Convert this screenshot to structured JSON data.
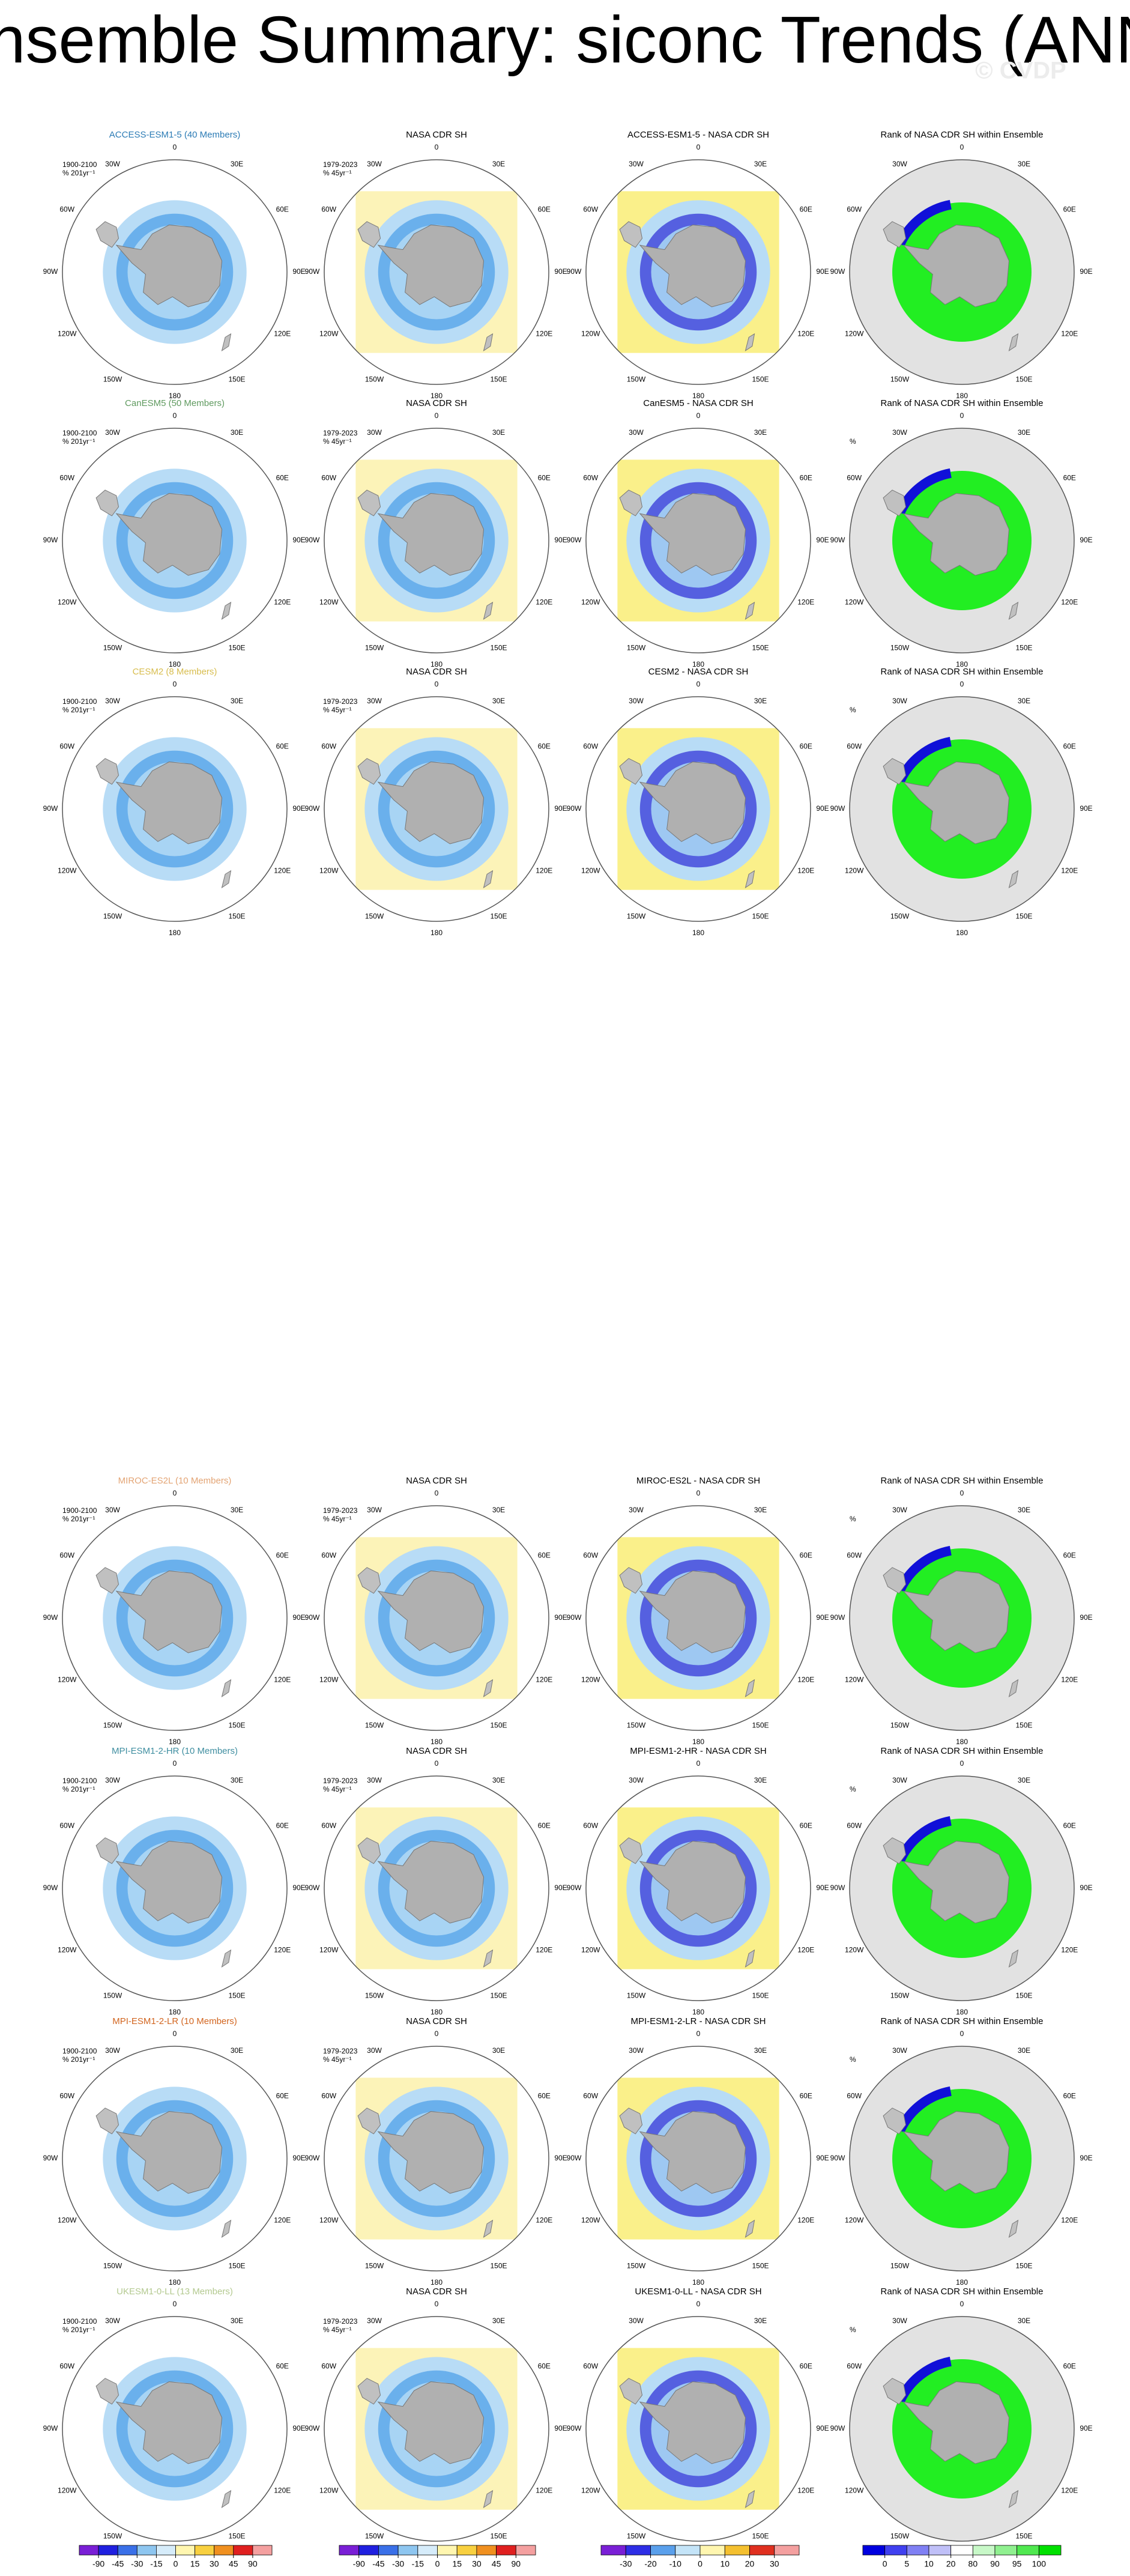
{
  "title": "Ensemble Summary: siconc Trends (ANN)",
  "watermark": "© CVDP",
  "lon_labels": [
    "0",
    "30E",
    "60E",
    "90E",
    "120E",
    "150E",
    "180",
    "150W",
    "120W",
    "90W",
    "60W",
    "30W"
  ],
  "rows": [
    {
      "model_label": "ACCESS-ESM1-5 (40 Members)",
      "label_color": "#2b7bb5",
      "model_period": "1900-2100",
      "model_units": "% 201yr⁻¹",
      "obs_title": "NASA CDR SH",
      "obs_period": "1979-2023",
      "obs_units": "% 45yr⁻¹",
      "diff_title": "ACCESS-ESM1-5 - NASA CDR SH",
      "rank_title": "Rank of NASA CDR SH within Ensemble"
    },
    {
      "model_label": "CanESM5 (50 Members)",
      "label_color": "#5f9a5f",
      "model_period": "1900-2100",
      "model_units": "% 201yr⁻¹",
      "obs_title": "NASA CDR SH",
      "obs_period": "1979-2023",
      "obs_units": "% 45yr⁻¹",
      "diff_title": "CanESM5 - NASA CDR SH",
      "rank_title": "Rank of NASA CDR SH within Ensemble",
      "rank_units": "%"
    },
    {
      "model_label": "CESM2 (8 Members)",
      "label_color": "#d8bd4e",
      "model_period": "1900-2100",
      "model_units": "% 201yr⁻¹",
      "obs_title": "NASA CDR SH",
      "obs_period": "1979-2023",
      "obs_units": "% 45yr⁻¹",
      "diff_title": "CESM2 - NASA CDR SH",
      "rank_title": "Rank of NASA CDR SH within Ensemble",
      "rank_units": "%"
    },
    {
      "model_label": "MIROC-ES2L (10 Members)",
      "label_color": "#e3a474",
      "model_period": "1900-2100",
      "model_units": "% 201yr⁻¹",
      "obs_title": "NASA CDR SH",
      "obs_period": "1979-2023",
      "obs_units": "% 45yr⁻¹",
      "diff_title": "MIROC-ES2L - NASA CDR SH",
      "rank_title": "Rank of NASA CDR SH within Ensemble",
      "rank_units": "%"
    },
    {
      "model_label": "MPI-ESM1-2-HR (10 Members)",
      "label_color": "#3f8ea0",
      "model_period": "1900-2100",
      "model_units": "% 201yr⁻¹",
      "obs_title": "NASA CDR SH",
      "obs_period": "1979-2023",
      "obs_units": "% 45yr⁻¹",
      "diff_title": "MPI-ESM1-2-HR - NASA CDR SH",
      "rank_title": "Rank of NASA CDR SH within Ensemble",
      "rank_units": "%"
    },
    {
      "model_label": "MPI-ESM1-2-LR (10 Members)",
      "label_color": "#d2651f",
      "model_period": "1900-2100",
      "model_units": "% 201yr⁻¹",
      "obs_title": "NASA CDR SH",
      "obs_period": "1979-2023",
      "obs_units": "% 45yr⁻¹",
      "diff_title": "MPI-ESM1-2-LR - NASA CDR SH",
      "rank_title": "Rank of NASA CDR SH within Ensemble",
      "rank_units": "%"
    },
    {
      "model_label": "UKESM1-0-LL (13 Members)",
      "label_color": "#b3c98f",
      "model_period": "1900-2100",
      "model_units": "% 201yr⁻¹",
      "obs_title": "NASA CDR SH",
      "obs_period": "1979-2023",
      "obs_units": "% 45yr⁻¹",
      "diff_title": "UKESM1-0-LL - NASA CDR SH",
      "rank_title": "Rank of NASA CDR SH within Ensemble",
      "rank_units": "%"
    }
  ],
  "colorbars": [
    {
      "ticks": [
        -90,
        -45,
        -30,
        -15,
        0,
        15,
        30,
        45,
        90
      ],
      "colors": [
        "#7a1fd6",
        "#2020e0",
        "#3a70e8",
        "#8ec6f0",
        "#d6ecfa",
        "#fff6b0",
        "#f8d040",
        "#f09020",
        "#e02020",
        "#f4a0a0"
      ]
    },
    {
      "ticks": [
        -90,
        -45,
        -30,
        -15,
        0,
        15,
        30,
        45,
        90
      ],
      "colors": [
        "#7a1fd6",
        "#2020e0",
        "#3a70e8",
        "#8ec6f0",
        "#d6ecfa",
        "#fff6b0",
        "#f8d040",
        "#f09020",
        "#e02020",
        "#f4a0a0"
      ]
    },
    {
      "ticks": [
        -30,
        -20,
        -10,
        0,
        10,
        20,
        30
      ],
      "colors": [
        "#7a1fd6",
        "#2e2ee6",
        "#5aa0ec",
        "#c4e4f8",
        "#fff6b0",
        "#f4c030",
        "#e03020",
        "#f4a0a0"
      ]
    },
    {
      "ticks": [
        0,
        5,
        10,
        20,
        80,
        90,
        95,
        100
      ],
      "colors": [
        "#0000e0",
        "#4040f0",
        "#8080f4",
        "#c0c0f8",
        "#ffffff",
        "#c8f8c8",
        "#90f090",
        "#50e850",
        "#00e000"
      ]
    }
  ]
}
